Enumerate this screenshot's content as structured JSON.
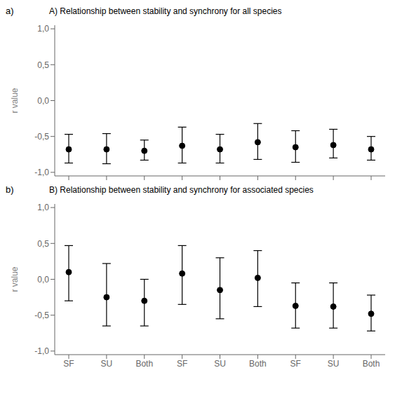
{
  "chart_data": [
    {
      "type": "scatter",
      "title": "A) Relationship between stability and synchrony for all species",
      "annotations": [
        "a)"
      ],
      "categories": [
        null,
        null,
        null,
        null,
        null,
        null,
        null,
        null,
        null
      ],
      "values": [
        -0.68,
        -0.68,
        -0.7,
        -0.63,
        -0.68,
        -0.58,
        -0.65,
        -0.62,
        -0.68
      ],
      "lower": [
        -0.87,
        -0.88,
        -0.83,
        -0.87,
        -0.87,
        -0.82,
        -0.86,
        -0.8,
        -0.83
      ],
      "upper": [
        -0.47,
        -0.46,
        -0.55,
        -0.37,
        -0.47,
        -0.32,
        -0.42,
        -0.4,
        -0.5
      ],
      "color": "#000000",
      "marker": "circle",
      "ylim": [
        -1.05,
        1.05
      ],
      "yticks": [
        {
          "value": -1.0,
          "label": "-1,0"
        },
        {
          "value": -0.5,
          "label": "-0,5"
        },
        {
          "value": 0.0,
          "label": "0,0"
        },
        {
          "value": 0.5,
          "label": "0,5"
        },
        {
          "value": 1.0,
          "label": "1,0"
        }
      ],
      "ylabel": "r value"
    },
    {
      "type": "scatter",
      "title": "B) Relationship between stability and synchrony for associated species",
      "annotations": [
        "b)"
      ],
      "categories": [
        "SF",
        "SU",
        "Both",
        "SF",
        "SU",
        "Both",
        "SF",
        "SU",
        "Both"
      ],
      "values": [
        0.1,
        -0.25,
        -0.3,
        0.08,
        -0.15,
        0.02,
        -0.37,
        -0.38,
        -0.48
      ],
      "lower": [
        -0.3,
        -0.65,
        -0.65,
        -0.35,
        -0.55,
        -0.38,
        -0.68,
        -0.68,
        -0.72
      ],
      "upper": [
        0.47,
        0.22,
        0.0,
        0.47,
        0.3,
        0.4,
        -0.05,
        -0.05,
        -0.22
      ],
      "color": "#000000",
      "marker": "circle",
      "ylim": [
        -1.05,
        1.05
      ],
      "yticks": [
        {
          "value": -1.0,
          "label": "-1,0"
        },
        {
          "value": -0.5,
          "label": "-0,5"
        },
        {
          "value": 0.0,
          "label": "0,0"
        },
        {
          "value": 0.5,
          "label": "0,5"
        },
        {
          "value": 1.0,
          "label": "1,0"
        }
      ],
      "ylabel": "r value"
    }
  ]
}
